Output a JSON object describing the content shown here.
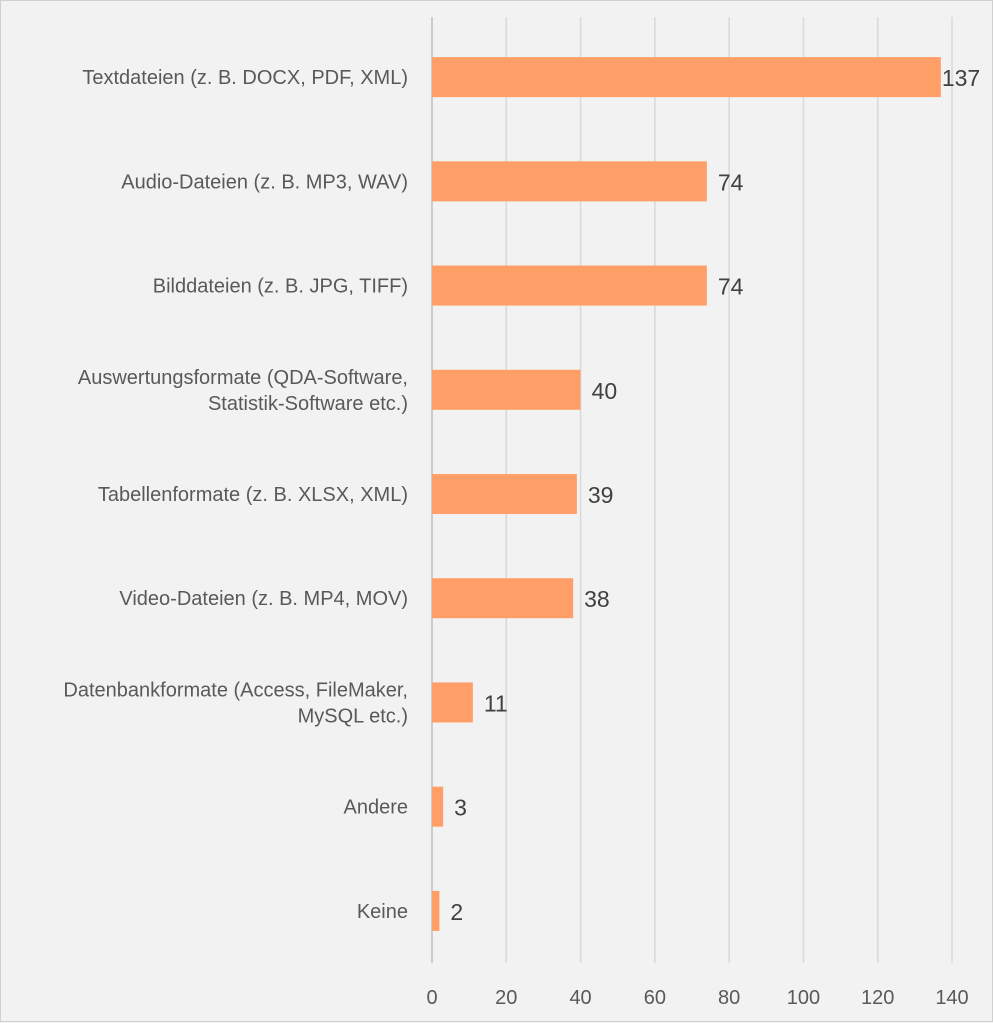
{
  "chart_data": {
    "type": "bar",
    "orientation": "horizontal",
    "title": "",
    "xlabel": "",
    "ylabel": "",
    "xlim": [
      0,
      140
    ],
    "xticks": [
      0,
      20,
      40,
      60,
      80,
      100,
      120,
      140
    ],
    "grid": true,
    "categories": [
      [
        "Textdateien (z. B. DOCX, PDF, XML)"
      ],
      [
        "Audio-Dateien (z. B. MP3, WAV)"
      ],
      [
        "Bilddateien (z. B. JPG, TIFF)"
      ],
      [
        "Auswertungsformate (QDA-Software,",
        "Statistik-Software etc.)"
      ],
      [
        "Tabellenformate (z. B. XLSX, XML)"
      ],
      [
        "Video-Dateien (z. B. MP4, MOV)"
      ],
      [
        "Datenbankformate (Access, FileMaker,",
        "MySQL etc.)"
      ],
      [
        "Andere"
      ],
      [
        "Keine"
      ]
    ],
    "values": [
      137,
      74,
      74,
      40,
      39,
      38,
      11,
      3,
      2
    ],
    "bar_color": "#ff9e66"
  }
}
